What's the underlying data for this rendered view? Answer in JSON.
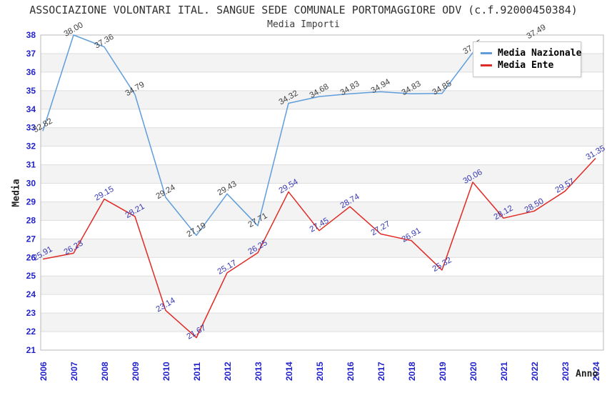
{
  "header": {
    "title": "ASSOCIAZIONE VOLONTARI ITAL. SANGUE SEDE COMUNALE PORTOMAGGIORE ODV (c.f.92000450384)",
    "subtitle": "Media Importi"
  },
  "legend": {
    "items": [
      {
        "label": "Media Nazionale",
        "color": "#5F9DDB"
      },
      {
        "label": "Media Ente",
        "color": "#E02A25"
      }
    ],
    "position": "top-right"
  },
  "chart_data": {
    "type": "line",
    "title": "Media Importi",
    "xlabel": "Anno",
    "ylabel": "Media",
    "x": [
      2006,
      2007,
      2008,
      2009,
      2010,
      2011,
      2012,
      2013,
      2014,
      2015,
      2016,
      2017,
      2018,
      2019,
      2020,
      2021,
      2022,
      2023,
      2024
    ],
    "ylim": [
      21,
      38
    ],
    "grid": true,
    "band_fill": "alternating",
    "legend_position": "top-right",
    "series": [
      {
        "name": "Media Nazionale",
        "color": "#5F9DDB",
        "label_color": "#3F3F3F",
        "values": [
          32.82,
          38.0,
          37.36,
          34.79,
          29.24,
          27.19,
          29.43,
          27.71,
          34.32,
          34.68,
          34.83,
          34.94,
          34.83,
          34.85,
          37.05,
          37.49,
          null,
          null,
          null
        ]
      },
      {
        "name": "Media Ente",
        "color": "#E02A25",
        "label_color": "#3737B2",
        "values": [
          25.91,
          26.23,
          29.15,
          28.21,
          23.14,
          21.67,
          25.17,
          26.25,
          29.54,
          27.45,
          28.74,
          27.27,
          26.91,
          25.32,
          30.06,
          28.12,
          28.5,
          29.57,
          31.35
        ]
      }
    ],
    "label_offset_overrides": {
      "Media Nazionale": {
        "2021": {
          "dx": 60,
          "dy": -22
        }
      }
    }
  },
  "style": {
    "tick_color": "#2222CC",
    "band_color": "#F3F3F3",
    "grid_color": "#DEDEDE",
    "border_color": "#B8B8B8"
  }
}
